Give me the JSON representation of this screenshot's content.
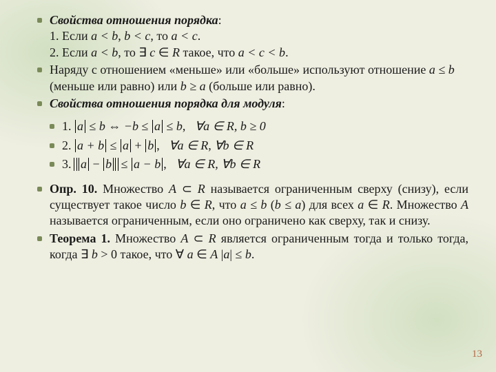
{
  "sec1": {
    "title": "Свойства отношения порядка",
    "colon": ":",
    "p1_a": "1. Если ",
    "p1_b": "a < b",
    "p1_c": ", ",
    "p1_d": "b < c",
    "p1_e": ", то ",
    "p1_f": "a < c",
    "p1_g": ".",
    "p2_a": "2. Если ",
    "p2_b": "a < b",
    "p2_c": ", то ∃ ",
    "p2_d": "c",
    "p2_e": " ∈ ",
    "p2_f": "R",
    "p2_g": " такое, что ",
    "p2_h": "a < c < b",
    "p2_i": "."
  },
  "sec2": {
    "a": "Наряду с отношением «меньше» или «больше» используют отношение ",
    "b": "a ≤ b",
    "c": " (меньше или равно) или ",
    "d": "b ≥ a",
    "e": " (больше или равно)."
  },
  "sec3": {
    "title": "Свойства отношения порядка для модуля",
    "colon": ":"
  },
  "f1": {
    "n": "1.",
    "lhs_a": "a",
    "op1": " ≤ ",
    "lhs_b": "b",
    "iff": " ⇔ ",
    "rhs_neg": "−b",
    "rhs_le1": " ≤ ",
    "rhs_mid": "a",
    "rhs_le2": " ≤ ",
    "rhs_b": "b",
    "comma": ",",
    "quant": "   ∀a ∈ R, b ≥ 0"
  },
  "f2": {
    "n": "2.",
    "inner": "a + b",
    "op": " ≤ ",
    "r1": "a",
    "plus": " + ",
    "r2": "b",
    "comma": ",",
    "quant": "   ∀a ∈ R, ∀b ∈ R"
  },
  "f3": {
    "n": "3.",
    "l1": "a",
    "minus": " − ",
    "l2": "b",
    "op": " ≤ ",
    "r": "a − b",
    "comma": ",",
    "quant": "   ∀a ∈ R, ∀b ∈ R"
  },
  "def10": {
    "pre": "Опр. 10.",
    "a": " Множество ",
    "b": "A",
    "c": " ⊂ ",
    "d": "R",
    "e": " называется ограниченным сверху (снизу), если существует такое число ",
    "f": "b",
    "g": " ∈ ",
    "h": "R",
    "i": ", что ",
    "j": "a ≤ b",
    "k": " (",
    "l": "b ≤ a",
    "m": ") для всех ",
    "n": "a",
    "o": " ∈ ",
    "p": "R",
    "q": ". Множество ",
    "r": "A",
    "s": " называется ограниченным, если оно ограничено как сверху, так и снизу."
  },
  "th1": {
    "pre": "Теорема 1.",
    "a": " Множество ",
    "b": "A",
    "c": " ⊂ ",
    "d": "R",
    "e": " является ограниченным тогда и только тогда, когда ∃ ",
    "f": "b",
    "g": " > 0 такое, что ∀ ",
    "h": "a",
    "i": " ∈ ",
    "j": "A",
    "k": "  |",
    "l": "a",
    "m": "| ≤ ",
    "n": "b",
    "o": "."
  },
  "pagenum": "13"
}
